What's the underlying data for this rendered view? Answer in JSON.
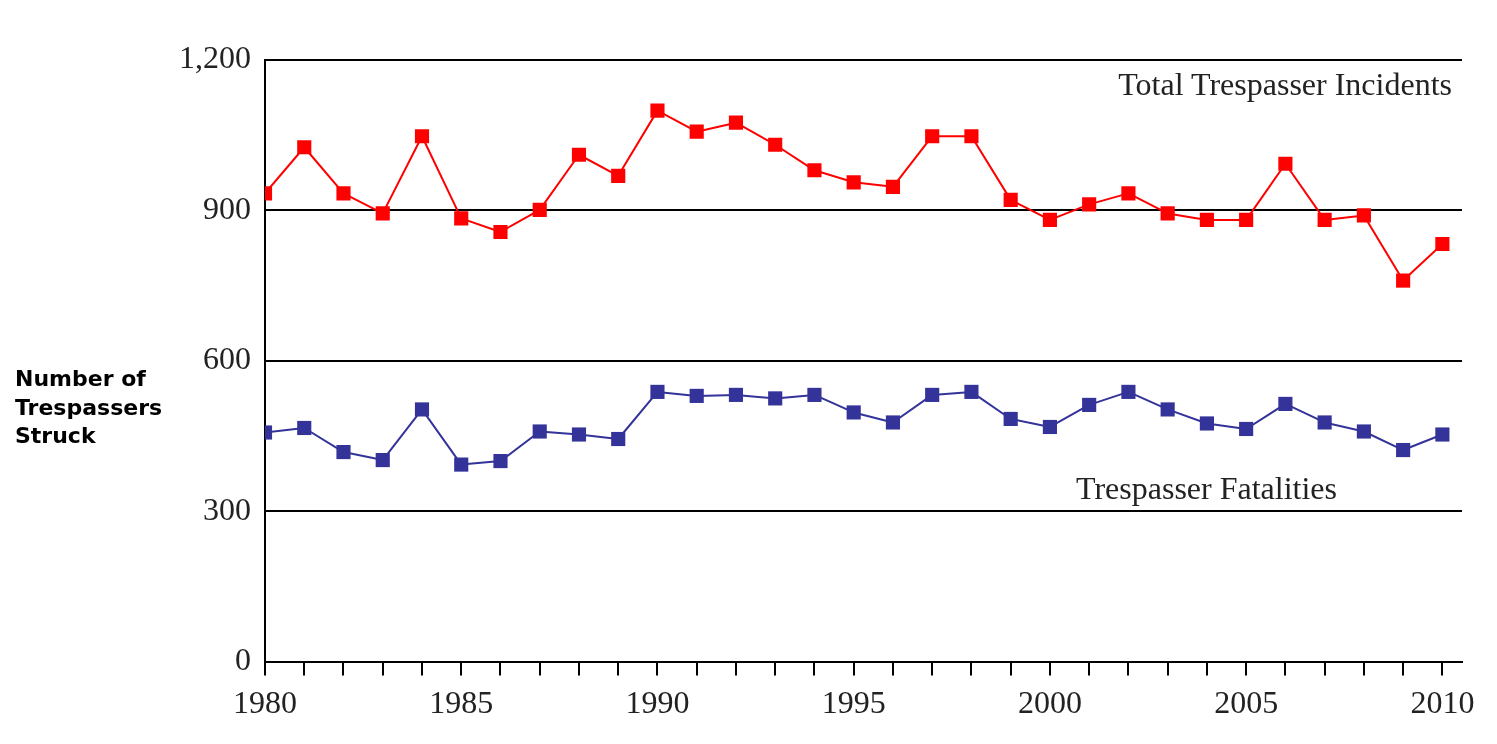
{
  "chart_data": {
    "type": "line",
    "ylabel": "Number of Trespassers Struck",
    "x": [
      1980,
      1981,
      1982,
      1983,
      1984,
      1985,
      1986,
      1987,
      1988,
      1989,
      1990,
      1991,
      1992,
      1993,
      1994,
      1995,
      1996,
      1997,
      1998,
      1999,
      2000,
      2001,
      2002,
      2003,
      2004,
      2005,
      2006,
      2007,
      2008,
      2009,
      2010
    ],
    "series": [
      {
        "name": "Total Trespasser Incidents",
        "color": "#ff0000",
        "values": [
          934,
          1026,
          934,
          894,
          1048,
          884,
          857,
          901,
          1011,
          969,
          1099,
          1057,
          1075,
          1031,
          980,
          956,
          947,
          1048,
          1048,
          921,
          881,
          912,
          934,
          894,
          881,
          881,
          993,
          881,
          890,
          760,
          833
        ]
      },
      {
        "name": "Trespasser Fatalities",
        "color": "#333399",
        "values": [
          457,
          466,
          418,
          402,
          503,
          393,
          400,
          459,
          453,
          444,
          538,
          530,
          532,
          525,
          532,
          497,
          477,
          532,
          538,
          484,
          468,
          512,
          538,
          503,
          475,
          464,
          514,
          477,
          459,
          422,
          453
        ]
      }
    ],
    "xlim": [
      1980,
      2010.5
    ],
    "xticks": [
      1980,
      {
        "value": 1981,
        "label": null
      },
      {
        "value": 1982,
        "label": null
      },
      {
        "value": 1983,
        "label": null
      },
      {
        "value": 1984,
        "label": null
      },
      1985,
      {
        "value": 1986,
        "label": null
      },
      {
        "value": 1987,
        "label": null
      },
      {
        "value": 1988,
        "label": null
      },
      {
        "value": 1989,
        "label": null
      },
      1990,
      {
        "value": 1991,
        "label": null
      },
      {
        "value": 1992,
        "label": null
      },
      {
        "value": 1993,
        "label": null
      },
      {
        "value": 1994,
        "label": null
      },
      1995,
      {
        "value": 1996,
        "label": null
      },
      {
        "value": 1997,
        "label": null
      },
      {
        "value": 1998,
        "label": null
      },
      {
        "value": 1999,
        "label": null
      },
      2000,
      {
        "value": 2001,
        "label": null
      },
      {
        "value": 2002,
        "label": null
      },
      {
        "value": 2003,
        "label": null
      },
      {
        "value": 2004,
        "label": null
      },
      2005,
      {
        "value": 2006,
        "label": null
      },
      {
        "value": 2007,
        "label": null
      },
      {
        "value": 2008,
        "label": null
      },
      {
        "value": 2009,
        "label": null
      },
      2010
    ],
    "ylim": [
      0,
      1200
    ],
    "yticks": [
      0,
      300,
      600,
      900,
      {
        "value": 1200,
        "label": "1,200"
      }
    ],
    "grid": "y",
    "marker": "square",
    "line_style": "solid"
  }
}
